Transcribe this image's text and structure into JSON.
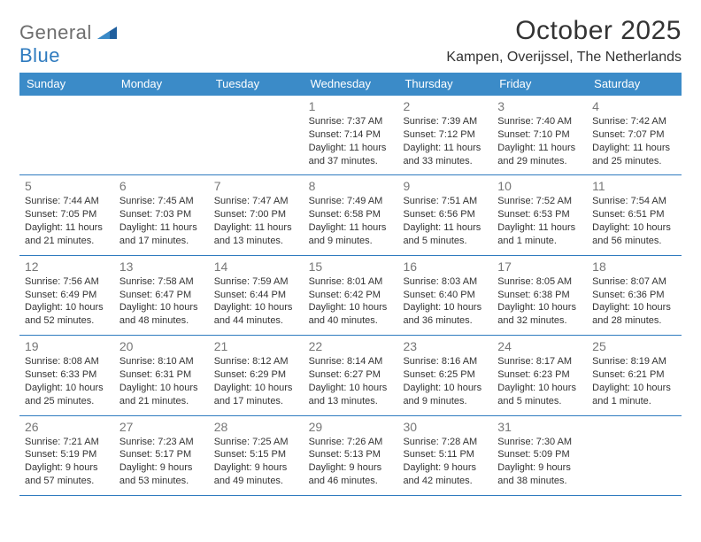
{
  "brand": {
    "part1": "General",
    "part2": "Blue"
  },
  "title": "October 2025",
  "location": "Kampen, Overijssel, The Netherlands",
  "colors": {
    "header_bg": "#3b8bc8",
    "rule": "#2f7bbf",
    "text": "#333333",
    "daynum": "#777777",
    "logo_gray": "#6e6e6e",
    "logo_blue": "#2f7bbf",
    "background": "#ffffff"
  },
  "day_names": [
    "Sunday",
    "Monday",
    "Tuesday",
    "Wednesday",
    "Thursday",
    "Friday",
    "Saturday"
  ],
  "weeks": [
    [
      null,
      null,
      null,
      {
        "n": "1",
        "sunrise": "7:37 AM",
        "sunset": "7:14 PM",
        "daylight": "11 hours and 37 minutes."
      },
      {
        "n": "2",
        "sunrise": "7:39 AM",
        "sunset": "7:12 PM",
        "daylight": "11 hours and 33 minutes."
      },
      {
        "n": "3",
        "sunrise": "7:40 AM",
        "sunset": "7:10 PM",
        "daylight": "11 hours and 29 minutes."
      },
      {
        "n": "4",
        "sunrise": "7:42 AM",
        "sunset": "7:07 PM",
        "daylight": "11 hours and 25 minutes."
      }
    ],
    [
      {
        "n": "5",
        "sunrise": "7:44 AM",
        "sunset": "7:05 PM",
        "daylight": "11 hours and 21 minutes."
      },
      {
        "n": "6",
        "sunrise": "7:45 AM",
        "sunset": "7:03 PM",
        "daylight": "11 hours and 17 minutes."
      },
      {
        "n": "7",
        "sunrise": "7:47 AM",
        "sunset": "7:00 PM",
        "daylight": "11 hours and 13 minutes."
      },
      {
        "n": "8",
        "sunrise": "7:49 AM",
        "sunset": "6:58 PM",
        "daylight": "11 hours and 9 minutes."
      },
      {
        "n": "9",
        "sunrise": "7:51 AM",
        "sunset": "6:56 PM",
        "daylight": "11 hours and 5 minutes."
      },
      {
        "n": "10",
        "sunrise": "7:52 AM",
        "sunset": "6:53 PM",
        "daylight": "11 hours and 1 minute."
      },
      {
        "n": "11",
        "sunrise": "7:54 AM",
        "sunset": "6:51 PM",
        "daylight": "10 hours and 56 minutes."
      }
    ],
    [
      {
        "n": "12",
        "sunrise": "7:56 AM",
        "sunset": "6:49 PM",
        "daylight": "10 hours and 52 minutes."
      },
      {
        "n": "13",
        "sunrise": "7:58 AM",
        "sunset": "6:47 PM",
        "daylight": "10 hours and 48 minutes."
      },
      {
        "n": "14",
        "sunrise": "7:59 AM",
        "sunset": "6:44 PM",
        "daylight": "10 hours and 44 minutes."
      },
      {
        "n": "15",
        "sunrise": "8:01 AM",
        "sunset": "6:42 PM",
        "daylight": "10 hours and 40 minutes."
      },
      {
        "n": "16",
        "sunrise": "8:03 AM",
        "sunset": "6:40 PM",
        "daylight": "10 hours and 36 minutes."
      },
      {
        "n": "17",
        "sunrise": "8:05 AM",
        "sunset": "6:38 PM",
        "daylight": "10 hours and 32 minutes."
      },
      {
        "n": "18",
        "sunrise": "8:07 AM",
        "sunset": "6:36 PM",
        "daylight": "10 hours and 28 minutes."
      }
    ],
    [
      {
        "n": "19",
        "sunrise": "8:08 AM",
        "sunset": "6:33 PM",
        "daylight": "10 hours and 25 minutes."
      },
      {
        "n": "20",
        "sunrise": "8:10 AM",
        "sunset": "6:31 PM",
        "daylight": "10 hours and 21 minutes."
      },
      {
        "n": "21",
        "sunrise": "8:12 AM",
        "sunset": "6:29 PM",
        "daylight": "10 hours and 17 minutes."
      },
      {
        "n": "22",
        "sunrise": "8:14 AM",
        "sunset": "6:27 PM",
        "daylight": "10 hours and 13 minutes."
      },
      {
        "n": "23",
        "sunrise": "8:16 AM",
        "sunset": "6:25 PM",
        "daylight": "10 hours and 9 minutes."
      },
      {
        "n": "24",
        "sunrise": "8:17 AM",
        "sunset": "6:23 PM",
        "daylight": "10 hours and 5 minutes."
      },
      {
        "n": "25",
        "sunrise": "8:19 AM",
        "sunset": "6:21 PM",
        "daylight": "10 hours and 1 minute."
      }
    ],
    [
      {
        "n": "26",
        "sunrise": "7:21 AM",
        "sunset": "5:19 PM",
        "daylight": "9 hours and 57 minutes."
      },
      {
        "n": "27",
        "sunrise": "7:23 AM",
        "sunset": "5:17 PM",
        "daylight": "9 hours and 53 minutes."
      },
      {
        "n": "28",
        "sunrise": "7:25 AM",
        "sunset": "5:15 PM",
        "daylight": "9 hours and 49 minutes."
      },
      {
        "n": "29",
        "sunrise": "7:26 AM",
        "sunset": "5:13 PM",
        "daylight": "9 hours and 46 minutes."
      },
      {
        "n": "30",
        "sunrise": "7:28 AM",
        "sunset": "5:11 PM",
        "daylight": "9 hours and 42 minutes."
      },
      {
        "n": "31",
        "sunrise": "7:30 AM",
        "sunset": "5:09 PM",
        "daylight": "9 hours and 38 minutes."
      },
      null
    ]
  ],
  "labels": {
    "sunrise": "Sunrise:",
    "sunset": "Sunset:",
    "daylight": "Daylight:"
  }
}
